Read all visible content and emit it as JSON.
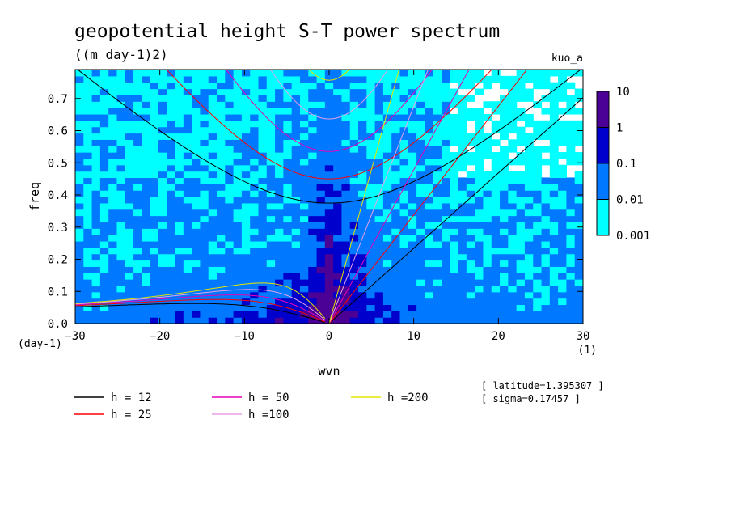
{
  "chart_data": {
    "type": "heatmap",
    "title": "geopotential height S-T power spectrum",
    "units": "((m day-1)2)",
    "run_label": "kuo_a",
    "xlabel": "wvn",
    "ylabel": "freq",
    "x_unit": "(1)",
    "y_unit": "(day-1)",
    "xlim": [
      -30,
      30
    ],
    "ylim": [
      0,
      0.79
    ],
    "x_ticks": [
      -30,
      -20,
      -10,
      0,
      10,
      20,
      30
    ],
    "y_ticks": [
      0.0,
      0.1,
      0.2,
      0.3,
      0.4,
      0.5,
      0.6,
      0.7
    ],
    "colorbar": {
      "levels": [
        "0.001",
        "0.01",
        "0.1",
        "1",
        "10"
      ],
      "colors": [
        "#00ffff",
        "#0078ff",
        "#0000cd",
        "#4b0096"
      ]
    },
    "info": [
      "[ latitude=1.395307 ]",
      "[ sigma=0.17457 ]"
    ],
    "dispersion_legend": [
      {
        "label": "h = 12",
        "equivalent_depth": 12,
        "color": "#000000"
      },
      {
        "label": "h = 25",
        "equivalent_depth": 25,
        "color": "#ff0000"
      },
      {
        "label": "h = 50",
        "equivalent_depth": 50,
        "color": "#e600b4"
      },
      {
        "label": "h =100",
        "equivalent_depth": 100,
        "color": "#e6a0e6"
      },
      {
        "label": "h =200",
        "equivalent_depth": 200,
        "color": "#e6e600"
      }
    ],
    "grid": false,
    "legend_placement": "bottom-left"
  }
}
